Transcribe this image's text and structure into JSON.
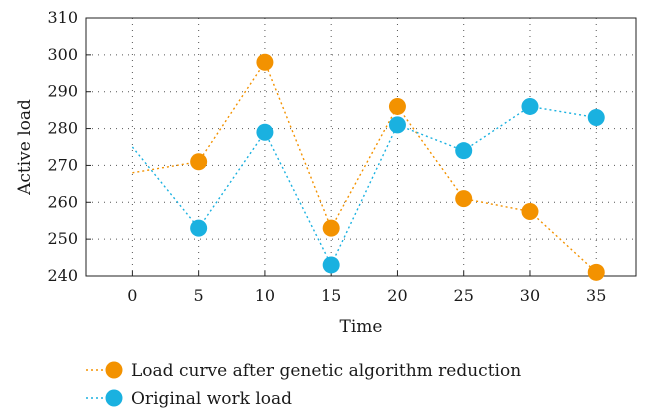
{
  "chart_data": {
    "type": "scatter",
    "xlabel": "Time",
    "ylabel": "Active load",
    "xlim": [
      -3.5,
      38
    ],
    "ylim": [
      240,
      310
    ],
    "xticks": [
      0,
      5,
      10,
      15,
      20,
      25,
      30,
      35
    ],
    "yticks": [
      240,
      250,
      260,
      270,
      280,
      290,
      300,
      310
    ],
    "grid": true,
    "legend_position": "bottom-left, below plot",
    "series": [
      {
        "name": "Load curve after genetic algorithm reduction",
        "color": "#f39200",
        "line_style": "dotted",
        "marker": "circle",
        "x": [
          0,
          5,
          10,
          15,
          20,
          25,
          30,
          35
        ],
        "y": [
          268,
          271,
          298,
          253,
          286,
          261,
          257.5,
          241
        ],
        "marker_x": [
          5,
          10,
          15,
          20,
          25,
          30,
          35
        ],
        "marker_y": [
          271,
          298,
          253,
          286,
          261,
          257.5,
          241
        ]
      },
      {
        "name": "Original work load",
        "color": "#1ab1e0",
        "line_style": "dotted",
        "marker": "circle",
        "x": [
          0,
          5,
          10,
          15,
          20,
          25,
          30,
          35
        ],
        "y": [
          275,
          253,
          279,
          243,
          281,
          274,
          286,
          283
        ],
        "marker_x": [
          5,
          10,
          15,
          20,
          25,
          30,
          35
        ],
        "marker_y": [
          253,
          279,
          243,
          281,
          274,
          286,
          283
        ]
      }
    ]
  }
}
